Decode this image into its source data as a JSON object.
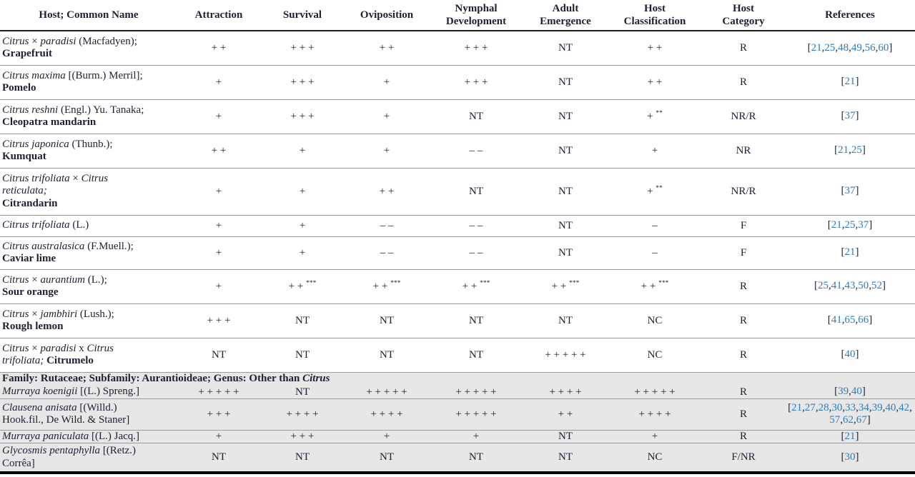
{
  "colors": {
    "link_blue": "#2e7bbd",
    "section_background": "#e7e7e7",
    "text": "#1f1f33"
  },
  "table": {
    "columns": [
      {
        "key": "host",
        "label": "Host; Common Name"
      },
      {
        "key": "attraction",
        "label": "Attraction"
      },
      {
        "key": "survival",
        "label": "Survival"
      },
      {
        "key": "oviposition",
        "label": "Oviposition"
      },
      {
        "key": "nymphal-development",
        "label": "Nymphal\nDevelopment"
      },
      {
        "key": "adult-emergence",
        "label": "Adult\nEmergence"
      },
      {
        "key": "host-classification",
        "label": "Host\nClassification"
      },
      {
        "key": "host-category",
        "label": "Host\nCategory"
      },
      {
        "key": "references",
        "label": "References"
      }
    ],
    "rows": [
      {
        "type": "data",
        "shade": false,
        "host": [
          {
            "t": "Citrus",
            "i": true
          },
          {
            "t": " × "
          },
          {
            "t": "paradisi",
            "i": true
          },
          {
            "t": " (Macfadyen);"
          },
          {
            "br": true
          },
          {
            "t": "Grapefruit",
            "b": true
          }
        ],
        "values": [
          "+ +",
          "+ + +",
          "+ +",
          "+ + +",
          "NT",
          "+ +"
        ],
        "category": "R",
        "refs": [
          "21",
          "25",
          "48",
          "49",
          "56",
          "60"
        ]
      },
      {
        "type": "data",
        "shade": false,
        "host": [
          {
            "t": "Citrus maxima",
            "i": true
          },
          {
            "t": " [(Burm.) Merril];"
          },
          {
            "br": true
          },
          {
            "t": "Pomelo",
            "b": true
          }
        ],
        "values": [
          "+",
          "+ + +",
          "+",
          "+ + +",
          "NT",
          "+ +"
        ],
        "category": "R",
        "refs": [
          "21"
        ]
      },
      {
        "type": "data",
        "shade": false,
        "host": [
          {
            "t": "Citrus reshni",
            "i": true
          },
          {
            "t": " (Engl.) Yu. Tanaka;"
          },
          {
            "br": true
          },
          {
            "t": "Cleopatra mandarin",
            "b": true
          }
        ],
        "values": [
          "+",
          "+ + +",
          "+",
          "NT",
          "NT",
          "+ **"
        ],
        "category": "NR/R",
        "refs": [
          "37"
        ]
      },
      {
        "type": "data",
        "shade": false,
        "host": [
          {
            "t": "Citrus japonica",
            "i": true
          },
          {
            "t": " (Thunb.);"
          },
          {
            "br": true
          },
          {
            "t": "Kumquat",
            "b": true
          }
        ],
        "values": [
          "+ +",
          "+",
          "+",
          "– –",
          "NT",
          "+"
        ],
        "category": "NR",
        "refs": [
          "21",
          "25"
        ]
      },
      {
        "type": "data",
        "shade": false,
        "host": [
          {
            "t": "Citrus trifoliata",
            "i": true
          },
          {
            "t": " × "
          },
          {
            "t": "Citrus",
            "i": true
          },
          {
            "br": true
          },
          {
            "t": "reticulata;",
            "i": true
          },
          {
            "br": true
          },
          {
            "t": "Citrandarin",
            "b": true
          }
        ],
        "values": [
          "+",
          "+",
          "+ +",
          "NT",
          "NT",
          "+ **"
        ],
        "category": "NR/R",
        "refs": [
          "37"
        ]
      },
      {
        "type": "data",
        "shade": false,
        "host": [
          {
            "t": "Citrus trifoliata",
            "i": true
          },
          {
            "t": " (L.)"
          }
        ],
        "values": [
          "+",
          "+",
          "– –",
          "– –",
          "NT",
          "–"
        ],
        "category": "F",
        "refs": [
          "21",
          "25",
          "37"
        ]
      },
      {
        "type": "data",
        "shade": false,
        "host": [
          {
            "t": "Citrus australasica",
            "i": true
          },
          {
            "t": " (F.Muell.);"
          },
          {
            "br": true
          },
          {
            "t": "Caviar lime",
            "b": true
          }
        ],
        "values": [
          "+",
          "+",
          "– –",
          "– –",
          "NT",
          "–"
        ],
        "category": "F",
        "refs": [
          "21"
        ]
      },
      {
        "type": "data",
        "shade": false,
        "host": [
          {
            "t": "Citrus",
            "i": true
          },
          {
            "t": " × "
          },
          {
            "t": "aurantium",
            "i": true
          },
          {
            "t": " (L.);"
          },
          {
            "br": true
          },
          {
            "t": "Sour orange",
            "b": true
          }
        ],
        "values": [
          "+",
          "+ + ***",
          "+ + ***",
          "+ + ***",
          "+ + ***",
          "+ + ***"
        ],
        "category": "R",
        "refs": [
          "25",
          "41",
          "43",
          "50",
          "52"
        ]
      },
      {
        "type": "data",
        "shade": false,
        "host": [
          {
            "t": "Citrus",
            "i": true
          },
          {
            "t": " × "
          },
          {
            "t": "jambhiri",
            "i": true
          },
          {
            "t": " (Lush.);"
          },
          {
            "br": true
          },
          {
            "t": "Rough lemon",
            "b": true
          }
        ],
        "values": [
          "+ + +",
          "NT",
          "NT",
          "NT",
          "NT",
          "NC"
        ],
        "category": "R",
        "refs": [
          "41",
          "65",
          "66"
        ]
      },
      {
        "type": "data",
        "shade": false,
        "host": [
          {
            "t": "Citrus",
            "i": true
          },
          {
            "t": " × "
          },
          {
            "t": "paradisi",
            "i": true
          },
          {
            "t": " x "
          },
          {
            "t": "Citrus",
            "i": true
          },
          {
            "br": true
          },
          {
            "t": "trifoliata;",
            "i": true
          },
          {
            "t": " "
          },
          {
            "t": "Citrumelo",
            "b": true
          }
        ],
        "values": [
          "NT",
          "NT",
          "NT",
          "NT",
          "+ + + + +",
          "NC"
        ],
        "category": "R",
        "refs": [
          "40"
        ]
      },
      {
        "type": "section",
        "shade": true,
        "host": [
          {
            "t": "Family: Rutaceae; Subfamily: Aurantioideae; Genus: Other than ",
            "b": true
          },
          {
            "t": "Citrus",
            "b": true,
            "i": true
          }
        ]
      },
      {
        "type": "data",
        "shade": true,
        "no_top_border": true,
        "host": [
          {
            "t": "Murraya koenigii",
            "i": true
          },
          {
            "t": " [(L.) Spreng.]"
          }
        ],
        "values": [
          "+ + + + +",
          "NT",
          "+ + + + +",
          "+ + + + +",
          "+ + + +",
          "+ + + + +"
        ],
        "category": "R",
        "refs": [
          "39",
          "40"
        ]
      },
      {
        "type": "data",
        "shade": true,
        "host": [
          {
            "t": "Clausena anisata",
            "i": true
          },
          {
            "t": " [(Willd.)"
          },
          {
            "br": true
          },
          {
            "t": "Hook.fil., De Wild. & Staner]"
          }
        ],
        "values": [
          "+ + +",
          "+ + + +",
          "+ + + +",
          "+ + + + +",
          "+ +",
          "+ + + +"
        ],
        "category": "R",
        "refs": [
          "21",
          "27",
          "28",
          "30",
          "33",
          "34",
          "39",
          "40",
          "42",
          "57",
          "62",
          "67"
        ]
      },
      {
        "type": "data",
        "shade": true,
        "host": [
          {
            "t": "Murraya paniculata",
            "i": true
          },
          {
            "t": " [(L.) Jacq.]"
          }
        ],
        "values": [
          "+",
          "+ + +",
          "+",
          "+",
          "NT",
          "+"
        ],
        "category": "R",
        "refs": [
          "21"
        ]
      },
      {
        "type": "data",
        "shade": true,
        "host": [
          {
            "t": "Glycosmis pentaphylla",
            "i": true
          },
          {
            "t": " [(Retz.)"
          },
          {
            "br": true
          },
          {
            "t": "Corrêa]"
          }
        ],
        "values": [
          "NT",
          "NT",
          "NT",
          "NT",
          "NT",
          "NC"
        ],
        "category": "F/NR",
        "refs": [
          "30"
        ]
      }
    ]
  }
}
